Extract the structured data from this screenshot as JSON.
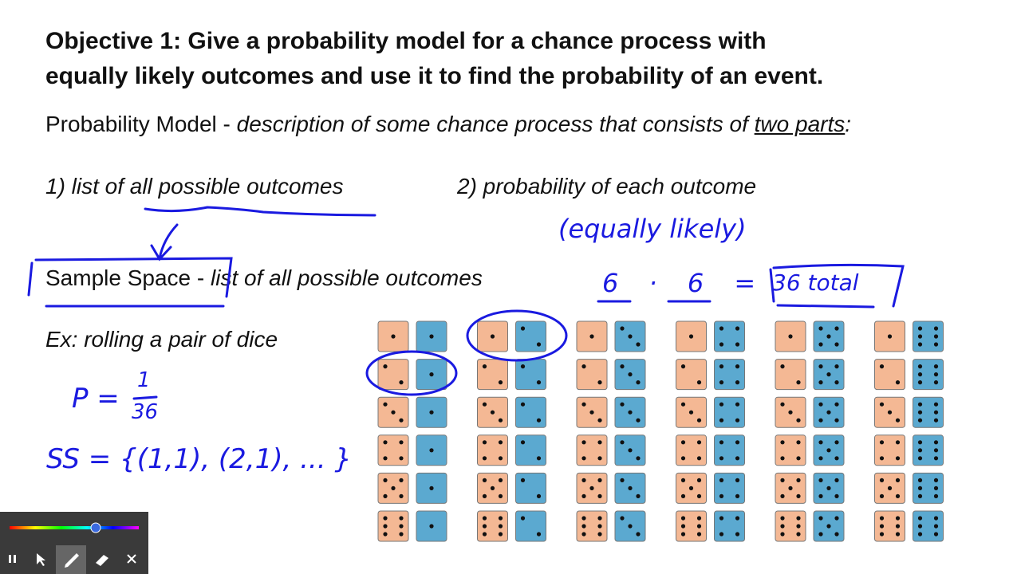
{
  "slide": {
    "title_lines": [
      "Objective 1: Give a probability model for a chance process with",
      "equally likely outcomes and use it to find the probability of an event."
    ],
    "definition": {
      "term": "Probability Model - ",
      "text": "description of some chance process that consists of ",
      "emphasis": "two parts",
      "tail": ":"
    },
    "parts": [
      "1) list of all possible outcomes",
      "2) probability of each outcome"
    ],
    "sample_space": {
      "term": "Sample Space - ",
      "text": "list of all possible outcomes"
    },
    "example": "Ex: rolling a pair of dice",
    "dice": {
      "orange": [
        1,
        2,
        3,
        4,
        5,
        6
      ],
      "blue": [
        1,
        2,
        3,
        4,
        5,
        6
      ]
    }
  },
  "annotations": {
    "equally_likely": "(equally likely)",
    "product": "6 · 6 =",
    "total": "36 total",
    "p_label": "P =",
    "p_numerator": "1",
    "p_denominator": "36",
    "sample_space": "SS = {(1,1), (2,1), ... }"
  }
}
